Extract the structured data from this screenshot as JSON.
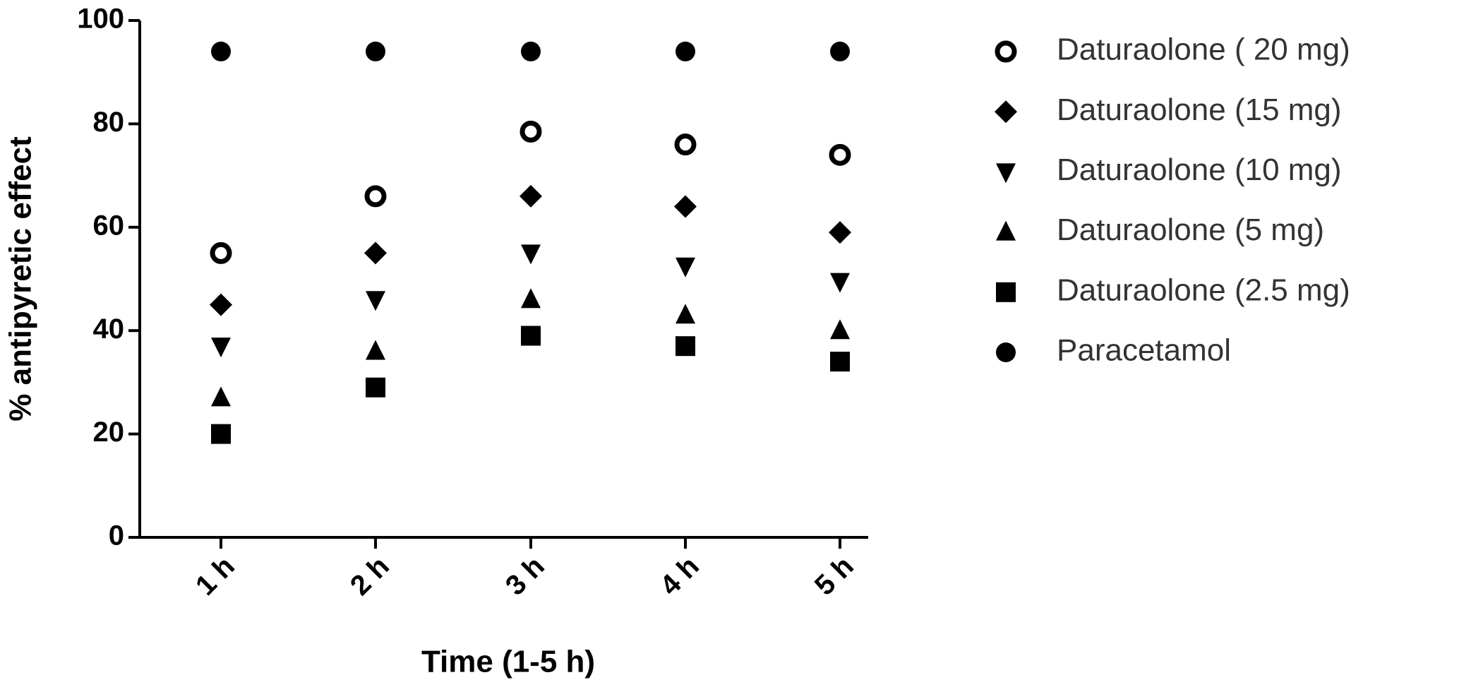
{
  "chart_data": {
    "type": "scatter",
    "x_label": "Time (1-5 h)",
    "y_label": "% antipyretic effect",
    "categories": [
      "1 h",
      "2 h",
      "3 h",
      "4 h",
      "5 h"
    ],
    "ylim": [
      0,
      100
    ],
    "yticks": [
      0,
      20,
      40,
      60,
      80,
      100
    ],
    "grid": false,
    "legend": "right",
    "series": [
      {
        "name": "Daturaolone ( 20 mg)",
        "color": "#000000",
        "marker": "circle-open",
        "values": [
          55,
          66,
          78.5,
          76,
          74
        ]
      },
      {
        "name": "Daturaolone (15 mg)",
        "color": "#000000",
        "marker": "diamond",
        "values": [
          45,
          55,
          66,
          64,
          59
        ]
      },
      {
        "name": "Daturaolone (10 mg)",
        "color": "#000000",
        "marker": "triangle-down",
        "values": [
          37,
          46,
          55,
          52.5,
          49.5
        ]
      },
      {
        "name": "Daturaolone (5 mg)",
        "color": "#000000",
        "marker": "triangle-up",
        "values": [
          27,
          36,
          46,
          43,
          40
        ]
      },
      {
        "name": "Daturaolone (2.5 mg)",
        "color": "#000000",
        "marker": "square",
        "values": [
          20,
          29,
          39,
          37,
          34
        ]
      },
      {
        "name": "Paracetamol",
        "color": "#000000",
        "marker": "circle",
        "values": [
          94,
          94,
          94,
          94,
          94
        ]
      }
    ]
  }
}
